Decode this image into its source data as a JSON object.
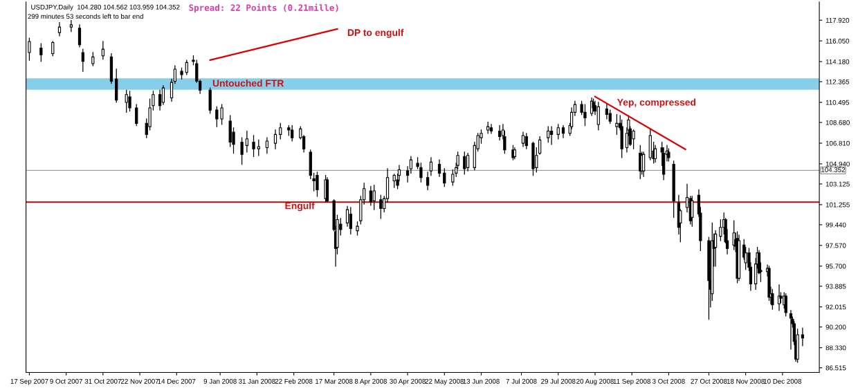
{
  "chart_data": {
    "type": "candlestick",
    "title": "USDJPY,Daily  104.280 104.562 103.959 104.352",
    "subtitle": "299 minutes 53 seconds left to bar end",
    "x": [
      "2007-09-17",
      "2007-09-24",
      "2007-10-01",
      "2007-10-05",
      "2007-10-12",
      "2007-10-17",
      "2007-10-19",
      "2007-10-25",
      "2007-10-31",
      "2007-11-05",
      "2007-11-08",
      "2007-11-14",
      "2007-11-16",
      "2007-11-20",
      "2007-11-26",
      "2007-11-28",
      "2007-11-30",
      "2007-12-04",
      "2007-12-06",
      "2007-12-11",
      "2007-12-13",
      "2007-12-17",
      "2007-12-20",
      "2007-12-24",
      "2007-12-26",
      "2007-12-28",
      "2008-01-03",
      "2008-01-07",
      "2008-01-10",
      "2008-01-15",
      "2008-01-17",
      "2008-01-22",
      "2008-01-25",
      "2008-01-29",
      "2008-02-01",
      "2008-02-06",
      "2008-02-11",
      "2008-02-14",
      "2008-02-19",
      "2008-02-21",
      "2008-02-26",
      "2008-02-28",
      "2008-03-03",
      "2008-03-05",
      "2008-03-07",
      "2008-03-12",
      "2008-03-13",
      "2008-03-17",
      "2008-03-18",
      "2008-03-19",
      "2008-03-21",
      "2008-03-25",
      "2008-03-27",
      "2008-03-31",
      "2008-04-02",
      "2008-04-04",
      "2008-04-08",
      "2008-04-10",
      "2008-04-14",
      "2008-04-16",
      "2008-04-18",
      "2008-04-22",
      "2008-04-24",
      "2008-04-25",
      "2008-04-30",
      "2008-05-02",
      "2008-05-06",
      "2008-05-08",
      "2008-05-12",
      "2008-05-14",
      "2008-05-19",
      "2008-05-22",
      "2008-05-27",
      "2008-05-29",
      "2008-05-30",
      "2008-06-03",
      "2008-06-05",
      "2008-06-09",
      "2008-06-11",
      "2008-06-13",
      "2008-06-17",
      "2008-06-19",
      "2008-06-24",
      "2008-06-26",
      "2008-06-27",
      "2008-07-02",
      "2008-07-03",
      "2008-07-08",
      "2008-07-10",
      "2008-07-14",
      "2008-07-16",
      "2008-07-18",
      "2008-07-23",
      "2008-07-25",
      "2008-07-29",
      "2008-08-01",
      "2008-08-05",
      "2008-08-06",
      "2008-08-08",
      "2008-08-12",
      "2008-08-14",
      "2008-08-18",
      "2008-08-19",
      "2008-08-20",
      "2008-08-22",
      "2008-08-27",
      "2008-08-29",
      "2008-09-02",
      "2008-09-04",
      "2008-09-05",
      "2008-09-08",
      "2008-09-09",
      "2008-09-10",
      "2008-09-12",
      "2008-09-16",
      "2008-09-17",
      "2008-09-18",
      "2008-09-22",
      "2008-09-24",
      "2008-09-25",
      "2008-09-29",
      "2008-09-30",
      "2008-10-02",
      "2008-10-03",
      "2008-10-06",
      "2008-10-09",
      "2008-10-10",
      "2008-10-14",
      "2008-10-16",
      "2008-10-17",
      "2008-10-21",
      "2008-10-22",
      "2008-10-27",
      "2008-10-28",
      "2008-10-29",
      "2008-10-30",
      "2008-10-31",
      "2008-11-03",
      "2008-11-05",
      "2008-11-06",
      "2008-11-07",
      "2008-11-11",
      "2008-11-12",
      "2008-11-13",
      "2008-11-14",
      "2008-11-17",
      "2008-11-18",
      "2008-11-20",
      "2008-11-21",
      "2008-11-24",
      "2008-11-25",
      "2008-11-26",
      "2008-11-27",
      "2008-12-01",
      "2008-12-02",
      "2008-12-03",
      "2008-12-04",
      "2008-12-08",
      "2008-12-09",
      "2008-12-11",
      "2008-12-12",
      "2008-12-15",
      "2008-12-16",
      "2008-12-17",
      "2008-12-18",
      "2008-12-19",
      "2008-12-22"
    ],
    "ohlc": [
      [
        115.0,
        116.3,
        114.3,
        116.0
      ],
      [
        115.4,
        115.8,
        114.2,
        114.8
      ],
      [
        114.9,
        116.0,
        114.7,
        115.9
      ],
      [
        116.8,
        117.7,
        116.5,
        117.3
      ],
      [
        117.3,
        117.9,
        116.9,
        117.5
      ],
      [
        117.2,
        117.5,
        115.5,
        115.7
      ],
      [
        115.0,
        115.3,
        113.3,
        114.2
      ],
      [
        114.0,
        115.0,
        113.8,
        114.6
      ],
      [
        114.7,
        116.0,
        114.4,
        115.3
      ],
      [
        114.6,
        114.9,
        112.2,
        112.4
      ],
      [
        112.6,
        113.5,
        110.5,
        110.7
      ],
      [
        110.5,
        111.6,
        109.6,
        111.2
      ],
      [
        111.0,
        111.5,
        109.7,
        110.0
      ],
      [
        110.0,
        110.3,
        108.4,
        108.6
      ],
      [
        108.6,
        109.0,
        107.3,
        107.6
      ],
      [
        108.3,
        110.8,
        108.0,
        110.0
      ],
      [
        110.2,
        111.5,
        109.8,
        111.2
      ],
      [
        111.2,
        111.6,
        109.8,
        110.2
      ],
      [
        110.5,
        112.0,
        110.3,
        111.8
      ],
      [
        110.9,
        112.6,
        110.6,
        112.3
      ],
      [
        112.4,
        113.8,
        112.2,
        113.5
      ],
      [
        113.3,
        113.6,
        112.6,
        113.0
      ],
      [
        113.2,
        114.3,
        113.0,
        114.1
      ],
      [
        114.3,
        114.7,
        113.9,
        114.2
      ],
      [
        114.0,
        114.3,
        112.3,
        112.4
      ],
      [
        112.4,
        112.5,
        111.3,
        111.6
      ],
      [
        111.6,
        111.8,
        109.5,
        109.8
      ],
      [
        109.8,
        110.1,
        108.3,
        109.0
      ],
      [
        109.0,
        110.3,
        108.5,
        110.0
      ],
      [
        108.8,
        109.3,
        106.5,
        106.9
      ],
      [
        107.8,
        108.2,
        105.9,
        106.7
      ],
      [
        106.9,
        107.3,
        104.9,
        105.8
      ],
      [
        106.6,
        107.9,
        106.0,
        107.2
      ],
      [
        106.9,
        107.5,
        105.6,
        106.3
      ],
      [
        106.3,
        107.1,
        105.7,
        106.5
      ],
      [
        106.4,
        107.3,
        105.9,
        107.0
      ],
      [
        106.8,
        108.0,
        106.3,
        107.6
      ],
      [
        107.6,
        108.6,
        107.2,
        108.2
      ],
      [
        108.2,
        108.4,
        107.5,
        108.0
      ],
      [
        108.0,
        108.4,
        107.0,
        107.3
      ],
      [
        107.3,
        108.3,
        107.2,
        108.1
      ],
      [
        107.4,
        107.5,
        106.0,
        106.3
      ],
      [
        106.0,
        106.2,
        103.6,
        103.9
      ],
      [
        103.6,
        104.1,
        102.5,
        103.4
      ],
      [
        103.9,
        104.2,
        102.0,
        102.6
      ],
      [
        101.8,
        103.9,
        101.5,
        103.5
      ],
      [
        103.5,
        103.7,
        101.5,
        101.6
      ],
      [
        101.6,
        101.7,
        98.9,
        99.0
      ],
      [
        98.8,
        99.3,
        95.7,
        97.3
      ],
      [
        97.4,
        100.3,
        96.8,
        99.9
      ],
      [
        99.5,
        100.0,
        98.5,
        99.0
      ],
      [
        99.6,
        101.1,
        99.3,
        100.8
      ],
      [
        100.4,
        101.0,
        98.6,
        99.1
      ],
      [
        98.9,
        99.7,
        98.5,
        99.3
      ],
      [
        99.8,
        102.0,
        99.5,
        101.7
      ],
      [
        101.7,
        103.2,
        101.3,
        102.7
      ],
      [
        102.5,
        102.9,
        101.2,
        101.5
      ],
      [
        101.6,
        103.0,
        100.8,
        102.5
      ],
      [
        101.7,
        102.1,
        100.0,
        100.9
      ],
      [
        100.9,
        102.0,
        100.6,
        101.8
      ],
      [
        101.8,
        104.5,
        101.5,
        103.7
      ],
      [
        103.4,
        104.0,
        102.8,
        103.9
      ],
      [
        103.5,
        104.0,
        102.7,
        103.0
      ],
      [
        103.9,
        104.8,
        103.4,
        104.4
      ],
      [
        104.3,
        104.7,
        103.3,
        103.9
      ],
      [
        104.5,
        105.6,
        104.1,
        105.3
      ],
      [
        105.0,
        105.5,
        104.5,
        104.7
      ],
      [
        104.6,
        105.0,
        103.3,
        103.7
      ],
      [
        103.7,
        104.2,
        102.6,
        103.0
      ],
      [
        104.3,
        105.5,
        103.9,
        105.1
      ],
      [
        104.9,
        105.3,
        103.8,
        104.1
      ],
      [
        104.1,
        104.5,
        102.9,
        103.2
      ],
      [
        103.3,
        104.4,
        103.0,
        104.0
      ],
      [
        104.1,
        105.0,
        103.8,
        104.6
      ],
      [
        104.8,
        106.0,
        104.5,
        105.7
      ],
      [
        105.6,
        106.0,
        104.0,
        104.5
      ],
      [
        104.6,
        105.9,
        104.3,
        105.7
      ],
      [
        104.6,
        106.9,
        104.4,
        106.6
      ],
      [
        106.3,
        107.7,
        106.1,
        107.5
      ],
      [
        107.3,
        108.0,
        106.8,
        107.7
      ],
      [
        108.0,
        108.7,
        107.7,
        108.3
      ],
      [
        108.2,
        108.5,
        107.7,
        107.9
      ],
      [
        107.9,
        108.4,
        107.1,
        107.4
      ],
      [
        107.5,
        108.5,
        107.2,
        108.0
      ],
      [
        107.4,
        107.9,
        105.9,
        106.2
      ],
      [
        106.2,
        106.6,
        105.3,
        105.5
      ],
      [
        105.6,
        106.4,
        105.4,
        106.2
      ],
      [
        106.8,
        107.8,
        106.5,
        107.5
      ],
      [
        107.4,
        107.7,
        106.3,
        106.6
      ],
      [
        106.8,
        106.9,
        103.9,
        104.5
      ],
      [
        104.6,
        106.4,
        104.2,
        105.7
      ],
      [
        105.9,
        107.4,
        105.8,
        107.1
      ],
      [
        107.3,
        108.3,
        106.9,
        107.9
      ],
      [
        107.9,
        108.3,
        106.7,
        107.6
      ],
      [
        107.6,
        108.5,
        107.2,
        108.2
      ],
      [
        108.2,
        108.4,
        107.3,
        107.7
      ],
      [
        107.7,
        108.6,
        107.5,
        108.4
      ],
      [
        108.3,
        110.0,
        108.1,
        109.6
      ],
      [
        109.6,
        110.6,
        109.3,
        110.3
      ],
      [
        110.3,
        110.6,
        109.4,
        109.6
      ],
      [
        109.6,
        110.3,
        108.4,
        109.1
      ],
      [
        109.5,
        110.9,
        109.3,
        110.6
      ],
      [
        110.5,
        110.8,
        109.7,
        110.0
      ],
      [
        110.2,
        110.6,
        109.4,
        109.7
      ],
      [
        108.5,
        110.5,
        108.0,
        110.1
      ],
      [
        109.9,
        110.4,
        109.0,
        109.4
      ],
      [
        109.5,
        109.8,
        108.6,
        108.8
      ],
      [
        108.3,
        109.4,
        107.6,
        108.6
      ],
      [
        108.6,
        109.3,
        108.0,
        108.2
      ],
      [
        108.3,
        108.9,
        105.5,
        106.3
      ],
      [
        106.4,
        108.2,
        106.0,
        107.7
      ],
      [
        108.0,
        109.3,
        107.5,
        108.9
      ],
      [
        108.1,
        108.3,
        106.6,
        106.7
      ],
      [
        107.2,
        108.0,
        106.3,
        107.9
      ],
      [
        105.9,
        106.6,
        103.6,
        104.3
      ],
      [
        104.3,
        106.0,
        104.0,
        105.7
      ],
      [
        104.3,
        106.0,
        103.8,
        105.8
      ],
      [
        105.5,
        108.1,
        105.3,
        107.5
      ],
      [
        106.1,
        106.9,
        105.0,
        105.4
      ],
      [
        105.4,
        106.6,
        105.1,
        106.3
      ],
      [
        106.4,
        106.9,
        104.8,
        106.0
      ],
      [
        105.9,
        106.4,
        103.5,
        104.0
      ],
      [
        105.8,
        106.6,
        105.2,
        106.1
      ],
      [
        106.0,
        106.3,
        105.2,
        105.5
      ],
      [
        104.9,
        105.2,
        100.1,
        101.6
      ],
      [
        101.4,
        102.1,
        98.6,
        99.2
      ],
      [
        99.6,
        100.8,
        97.9,
        100.7
      ],
      [
        101.0,
        103.1,
        100.6,
        101.9
      ],
      [
        101.8,
        102.0,
        99.5,
        99.8
      ],
      [
        100.1,
        102.0,
        99.3,
        101.6
      ],
      [
        102.1,
        102.6,
        100.2,
        100.4
      ],
      [
        100.5,
        101.0,
        97.1,
        98.0
      ],
      [
        98.0,
        98.3,
        90.9,
        94.4
      ],
      [
        94.4,
        97.9,
        92.0,
        93.6
      ],
      [
        93.2,
        99.6,
        92.6,
        98.0
      ],
      [
        98.0,
        98.6,
        95.7,
        97.3
      ],
      [
        97.4,
        98.9,
        95.7,
        98.6
      ],
      [
        98.4,
        99.9,
        98.0,
        99.2
      ],
      [
        99.2,
        100.5,
        98.6,
        99.9
      ],
      [
        99.9,
        100.0,
        97.8,
        97.9
      ],
      [
        98.0,
        99.0,
        96.8,
        97.3
      ],
      [
        97.6,
        99.8,
        97.2,
        98.7
      ],
      [
        98.1,
        98.7,
        97.0,
        97.5
      ],
      [
        98.2,
        98.8,
        94.2,
        94.6
      ],
      [
        94.6,
        98.5,
        94.4,
        98.0
      ],
      [
        97.6,
        98.1,
        96.3,
        96.5
      ],
      [
        96.0,
        97.4,
        95.4,
        96.9
      ],
      [
        96.9,
        97.3,
        95.3,
        95.6
      ],
      [
        95.6,
        96.0,
        93.5,
        94.1
      ],
      [
        94.1,
        96.4,
        93.6,
        95.9
      ],
      [
        95.9,
        97.4,
        95.5,
        96.9
      ],
      [
        96.9,
        97.1,
        95.0,
        95.1
      ],
      [
        95.3,
        96.0,
        94.3,
        95.2
      ],
      [
        95.2,
        95.8,
        94.8,
        95.5
      ],
      [
        95.5,
        95.7,
        92.6,
        92.9
      ],
      [
        92.9,
        93.8,
        92.3,
        93.2
      ],
      [
        93.2,
        93.6,
        91.8,
        92.2
      ],
      [
        92.3,
        94.0,
        91.7,
        93.0
      ],
      [
        93.0,
        93.3,
        92.4,
        92.8
      ],
      [
        92.2,
        93.3,
        91.9,
        93.0
      ],
      [
        93.0,
        93.2,
        91.2,
        91.5
      ],
      [
        91.4,
        91.7,
        88.2,
        91.0
      ],
      [
        90.9,
        91.1,
        90.2,
        90.5
      ],
      [
        90.5,
        90.7,
        88.6,
        88.9
      ],
      [
        88.9,
        89.0,
        87.1,
        87.3
      ],
      [
        87.3,
        90.0,
        87.0,
        89.5
      ],
      [
        89.5,
        90.1,
        88.5,
        89.2
      ]
    ],
    "series": [
      {
        "type": "line",
        "color": "#dd0000",
        "x": [
          "2008-01-03",
          "2008-03-19"
        ],
        "values": [
          114.32,
          117.13
        ]
      },
      {
        "type": "line",
        "color": "#dd0000",
        "x": [
          "2008-08-20",
          "2008-10-13"
        ],
        "values": [
          111.02,
          106.25
        ]
      }
    ],
    "bands": [
      {
        "axis": "y",
        "from": 111.63,
        "to": 112.67,
        "label": "Untouched FTR",
        "color": "#87ceeb"
      }
    ],
    "ref_lines": [
      {
        "axis": "y",
        "value": 101.48,
        "label": "Engulf",
        "color": "#cc0000"
      },
      {
        "axis": "y",
        "value": 104.352,
        "label": "104.352",
        "color": "#a0a0a0"
      }
    ],
    "annotations": [
      "Spread: 22 Points (0.21mille)",
      "DP to engulf",
      "Yep, compressed"
    ],
    "xlim": [
      "2007-09-15",
      "2009-01-01"
    ],
    "xticks": [
      {
        "value": "2007-09-17",
        "label": "17 Sep 2007"
      },
      {
        "value": "2007-10-09",
        "label": "9 Oct 2007"
      },
      {
        "value": "2007-10-31",
        "label": "31 Oct 2007"
      },
      {
        "value": "2007-11-22",
        "label": "22 Nov 2007"
      },
      {
        "value": "2007-12-14",
        "label": "14 Dec 2007"
      },
      {
        "value": "2008-01-09",
        "label": "9 Jan 2008"
      },
      {
        "value": "2008-01-31",
        "label": "31 Jan 2008"
      },
      {
        "value": "2008-02-22",
        "label": "22 Feb 2008"
      },
      {
        "value": "2008-03-17",
        "label": "17 Mar 2008"
      },
      {
        "value": "2008-04-08",
        "label": "8 Apr 2008"
      },
      {
        "value": "2008-04-30",
        "label": "30 Apr 2008"
      },
      {
        "value": "2008-05-22",
        "label": "22 May 2008"
      },
      {
        "value": "2008-06-13",
        "label": "13 Jun 2008"
      },
      {
        "value": "2008-07-07",
        "label": "7 Jul 2008"
      },
      {
        "value": "2008-07-29",
        "label": "29 Jul 2008"
      },
      {
        "value": "2008-08-20",
        "label": "20 Aug 2008"
      },
      {
        "value": "2008-09-11",
        "label": "11 Sep 2008"
      },
      {
        "value": "2008-10-03",
        "label": "3 Oct 2008"
      },
      {
        "value": "2008-10-27",
        "label": "27 Oct 2008"
      },
      {
        "value": "2008-11-18",
        "label": "18 Nov 2008"
      },
      {
        "value": "2008-12-10",
        "label": "10 Dec 2008"
      }
    ],
    "ylim": [
      86.09,
      119.57
    ],
    "yticks": [
      {
        "value": 86.515,
        "label": "86.515"
      },
      {
        "value": 88.33,
        "label": "88.330"
      },
      {
        "value": 90.2,
        "label": "90.200"
      },
      {
        "value": 92.015,
        "label": "92.015"
      },
      {
        "value": 93.885,
        "label": "93.885"
      },
      {
        "value": 95.7,
        "label": "95.700"
      },
      {
        "value": 97.57,
        "label": "97.570"
      },
      {
        "value": 99.44,
        "label": "99.440"
      },
      {
        "value": 101.255,
        "label": "101.255"
      },
      {
        "value": 103.125,
        "label": "103.125"
      },
      {
        "value": 104.94,
        "label": "104.940"
      },
      {
        "value": 106.81,
        "label": "106.810"
      },
      {
        "value": 108.68,
        "label": "108.680"
      },
      {
        "value": 110.495,
        "label": "110.495"
      },
      {
        "value": 112.365,
        "label": "112.365"
      },
      {
        "value": 114.18,
        "label": "114.180"
      },
      {
        "value": 116.05,
        "label": "116.050"
      },
      {
        "value": 117.92,
        "label": "117.920"
      }
    ],
    "grid": false,
    "legend": false
  }
}
